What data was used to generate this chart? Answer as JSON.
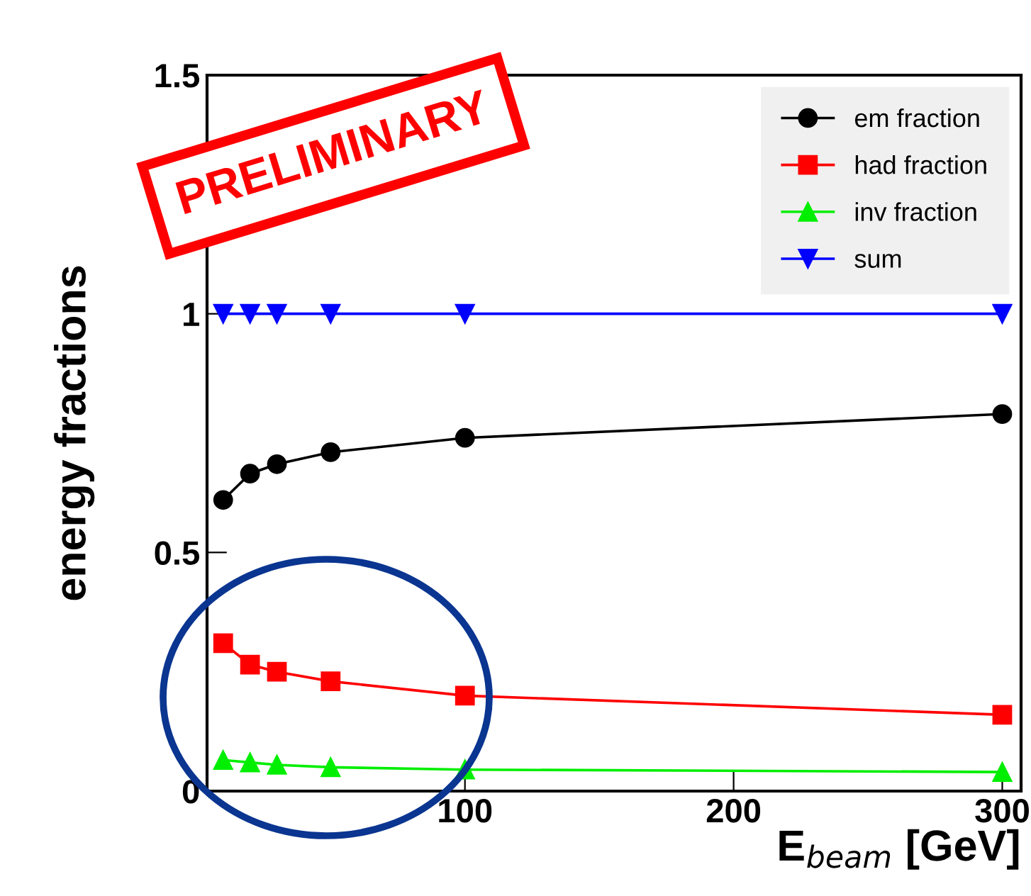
{
  "chart_data": {
    "type": "line",
    "ylabel": "energy fractions",
    "xlabel": "E$_{beam}$ [GeV]",
    "x": [
      10,
      20,
      30,
      50,
      100,
      300
    ],
    "series": [
      {
        "name": "em fraction",
        "color": "#000000",
        "marker": "circle",
        "values": [
          0.61,
          0.665,
          0.685,
          0.71,
          0.74,
          0.79
        ]
      },
      {
        "name": "had fraction",
        "color": "#ff0000",
        "marker": "square",
        "values": [
          0.31,
          0.265,
          0.25,
          0.23,
          0.2,
          0.16
        ]
      },
      {
        "name": "inv fraction",
        "color": "#00ee00",
        "marker": "triangle",
        "values": [
          0.065,
          0.06,
          0.055,
          0.05,
          0.045,
          0.04
        ]
      },
      {
        "name": "sum",
        "color": "#0000ff",
        "marker": "triangle_down",
        "values": [
          1,
          1,
          1,
          1,
          1,
          1
        ]
      }
    ],
    "xlim": [
      4,
      307
    ],
    "ylim": [
      0,
      1.5
    ],
    "xticks": [
      100,
      200,
      300
    ],
    "yticks": [
      0,
      0.5,
      1,
      1.5
    ],
    "grid": false,
    "legend": "top right",
    "annotations": [
      "PRELIMINARY"
    ]
  }
}
